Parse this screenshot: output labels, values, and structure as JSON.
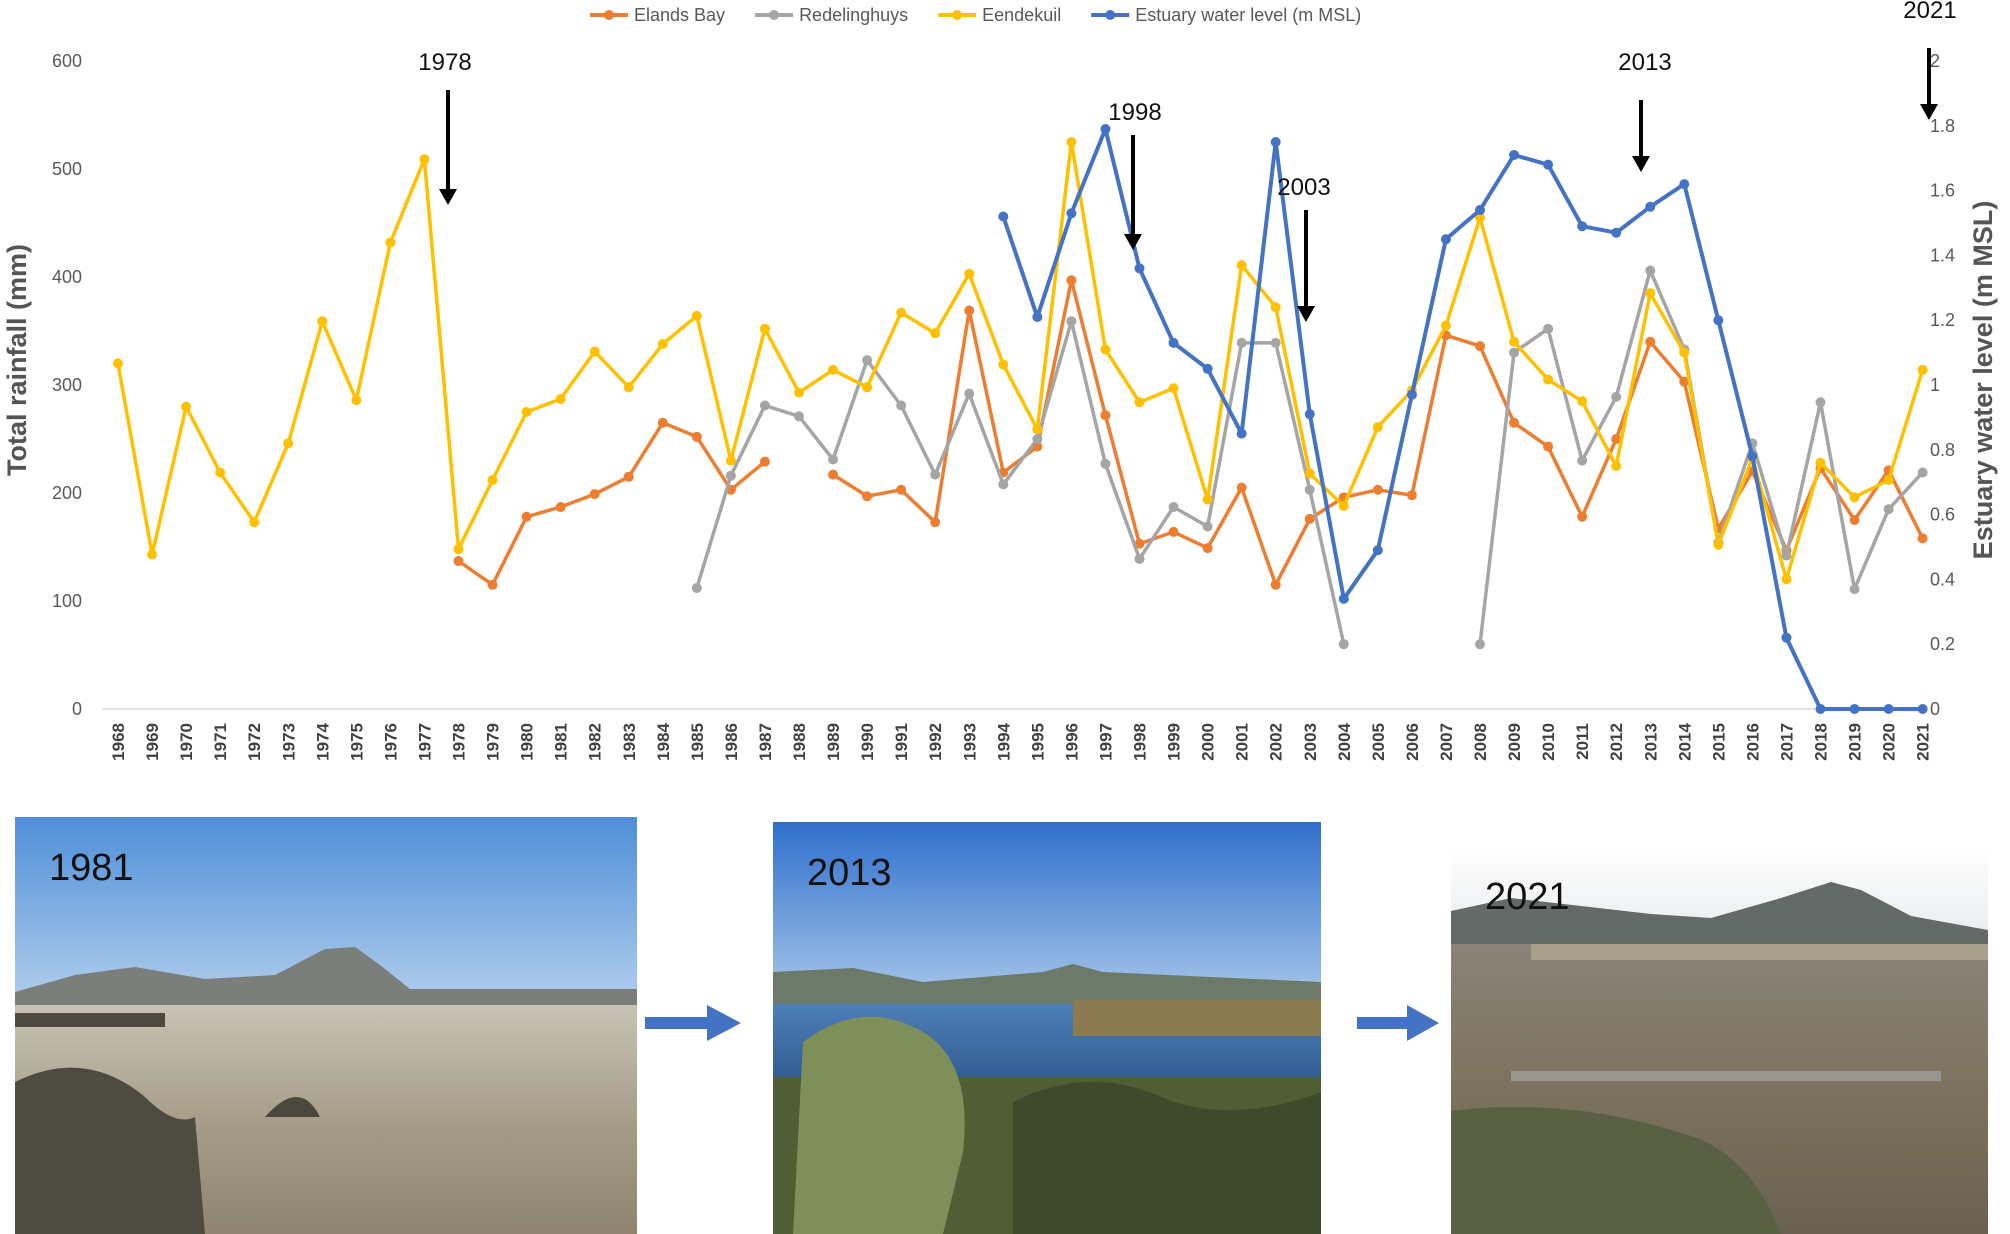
{
  "chart_data": {
    "type": "line",
    "title": "",
    "xlabel": "",
    "ylabel": "Total rainfall (mm)",
    "y2label": "Estuary water level (m MSL)",
    "ylim": [
      0,
      600
    ],
    "y2lim": [
      0,
      2
    ],
    "yticks": [
      "0",
      "100",
      "200",
      "300",
      "400",
      "500",
      "600"
    ],
    "y2ticks": [
      "0",
      "0.2",
      "0.4",
      "0.6",
      "0.8",
      "1",
      "1.2",
      "1.4",
      "1.6",
      "1.8",
      "2"
    ],
    "grid": false,
    "legend_position": "top",
    "x": [
      "1968",
      "1969",
      "1970",
      "1971",
      "1972",
      "1973",
      "1974",
      "1975",
      "1976",
      "1977",
      "1978",
      "1979",
      "1980",
      "1981",
      "1982",
      "1983",
      "1984",
      "1985",
      "1986",
      "1987",
      "1988",
      "1989",
      "1990",
      "1991",
      "1992",
      "1993",
      "1994",
      "1995",
      "1996",
      "1997",
      "1998",
      "1999",
      "2000",
      "2001",
      "2002",
      "2003",
      "2004",
      "2005",
      "2006",
      "2007",
      "2008",
      "2009",
      "2010",
      "2011",
      "2012",
      "2013",
      "2014",
      "2015",
      "2016",
      "2017",
      "2018",
      "2019",
      "2020",
      "2021"
    ],
    "series": [
      {
        "name": "Elands Bay",
        "axis": "left",
        "color": "#ED7D31",
        "values": [
          null,
          null,
          null,
          null,
          null,
          null,
          null,
          null,
          null,
          null,
          137,
          115,
          178,
          187,
          199,
          215,
          265,
          252,
          203,
          229,
          null,
          217,
          197,
          203,
          173,
          369,
          219,
          243,
          397,
          272,
          153,
          164,
          149,
          205,
          115,
          176,
          196,
          203,
          198,
          346,
          336,
          265,
          243,
          178,
          250,
          340,
          303,
          167,
          220,
          147,
          223,
          175,
          221,
          158
        ]
      },
      {
        "name": "Redelinghuys",
        "axis": "left",
        "color": "#A5A5A5",
        "values": [
          null,
          null,
          null,
          null,
          null,
          null,
          null,
          null,
          null,
          null,
          null,
          null,
          null,
          null,
          null,
          null,
          null,
          112,
          216,
          281,
          271,
          231,
          323,
          281,
          217,
          292,
          208,
          250,
          359,
          227,
          139,
          187,
          169,
          339,
          339,
          203,
          60,
          null,
          null,
          null,
          60,
          330,
          352,
          230,
          289,
          406,
          333,
          154,
          246,
          142,
          284,
          111,
          185,
          219
        ]
      },
      {
        "name": "Eendekuil",
        "axis": "left",
        "color": "#FFC000",
        "values": [
          320,
          143,
          280,
          219,
          173,
          246,
          359,
          286,
          432,
          509,
          148,
          212,
          275,
          287,
          331,
          298,
          338,
          364,
          230,
          352,
          293,
          314,
          298,
          367,
          348,
          403,
          319,
          259,
          525,
          333,
          284,
          297,
          194,
          411,
          372,
          218,
          188,
          261,
          295,
          355,
          455,
          340,
          305,
          285,
          225,
          385,
          330,
          152,
          232,
          120,
          228,
          196,
          212,
          314
        ]
      },
      {
        "name": "Estuary water level (m MSL)",
        "axis": "right",
        "color": "#4472C4",
        "values": [
          null,
          null,
          null,
          null,
          null,
          null,
          null,
          null,
          null,
          null,
          null,
          null,
          null,
          null,
          null,
          null,
          null,
          null,
          null,
          null,
          null,
          null,
          null,
          null,
          null,
          null,
          1.52,
          1.21,
          1.53,
          1.79,
          1.36,
          1.13,
          1.05,
          0.85,
          1.75,
          0.91,
          0.34,
          0.49,
          0.97,
          1.45,
          1.54,
          1.71,
          1.68,
          1.49,
          1.47,
          1.55,
          1.62,
          1.2,
          0.78,
          0.22,
          0,
          0,
          0,
          0
        ]
      }
    ],
    "annotations": [
      "1978",
      "1998",
      "2003",
      "2013",
      "2021"
    ]
  },
  "photos": [
    {
      "label": "1981"
    },
    {
      "label": "2013"
    },
    {
      "label": "2021"
    }
  ],
  "colors": {
    "sky_1981": "#5f96d6",
    "sky_2013": "#3a7bd0",
    "arrow": "#4472C4"
  }
}
